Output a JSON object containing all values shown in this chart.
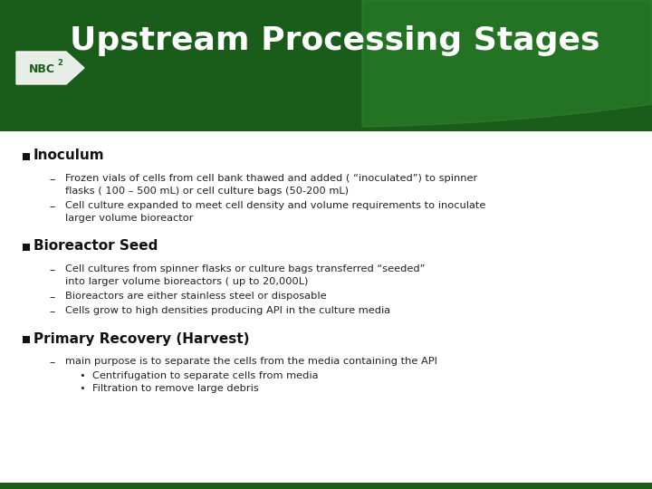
{
  "title": "Upstream Processing Stages",
  "title_color": "#ffffff",
  "title_fontsize": 26,
  "bg_color": "#ffffff",
  "green_dark": "#1a5c1a",
  "green_mid": "#2a7a2a",
  "sections": [
    {
      "header": "Inoculum",
      "sub_bullets": [
        {
          "lines": [
            "Frozen vials of cells from cell bank thawed and added ( “inoculated”) to spinner",
            "flasks ( 100 – 500 mL) or cell culture bags (50-200 mL)"
          ],
          "sub_sub": []
        },
        {
          "lines": [
            "Cell culture expanded to meet cell density and volume requirements to inoculate",
            "larger volume bioreactor"
          ],
          "sub_sub": []
        }
      ]
    },
    {
      "header": "Bioreactor Seed",
      "sub_bullets": [
        {
          "lines": [
            "Cell cultures from spinner flasks or culture bags transferred “seeded”",
            "into larger volume bioreactors ( up to 20,000L)"
          ],
          "sub_sub": []
        },
        {
          "lines": [
            "Bioreactors are either stainless steel or disposable"
          ],
          "sub_sub": []
        },
        {
          "lines": [
            "Cells grow to high densities producing API in the culture media"
          ],
          "sub_sub": []
        }
      ]
    },
    {
      "header": "Primary Recovery (Harvest)",
      "sub_bullets": [
        {
          "lines": [
            "main purpose is to separate the cells from the media containing the API"
          ],
          "sub_sub": [
            "Centrifugation to separate cells from media",
            "Filtration to remove large debris"
          ]
        }
      ]
    }
  ]
}
